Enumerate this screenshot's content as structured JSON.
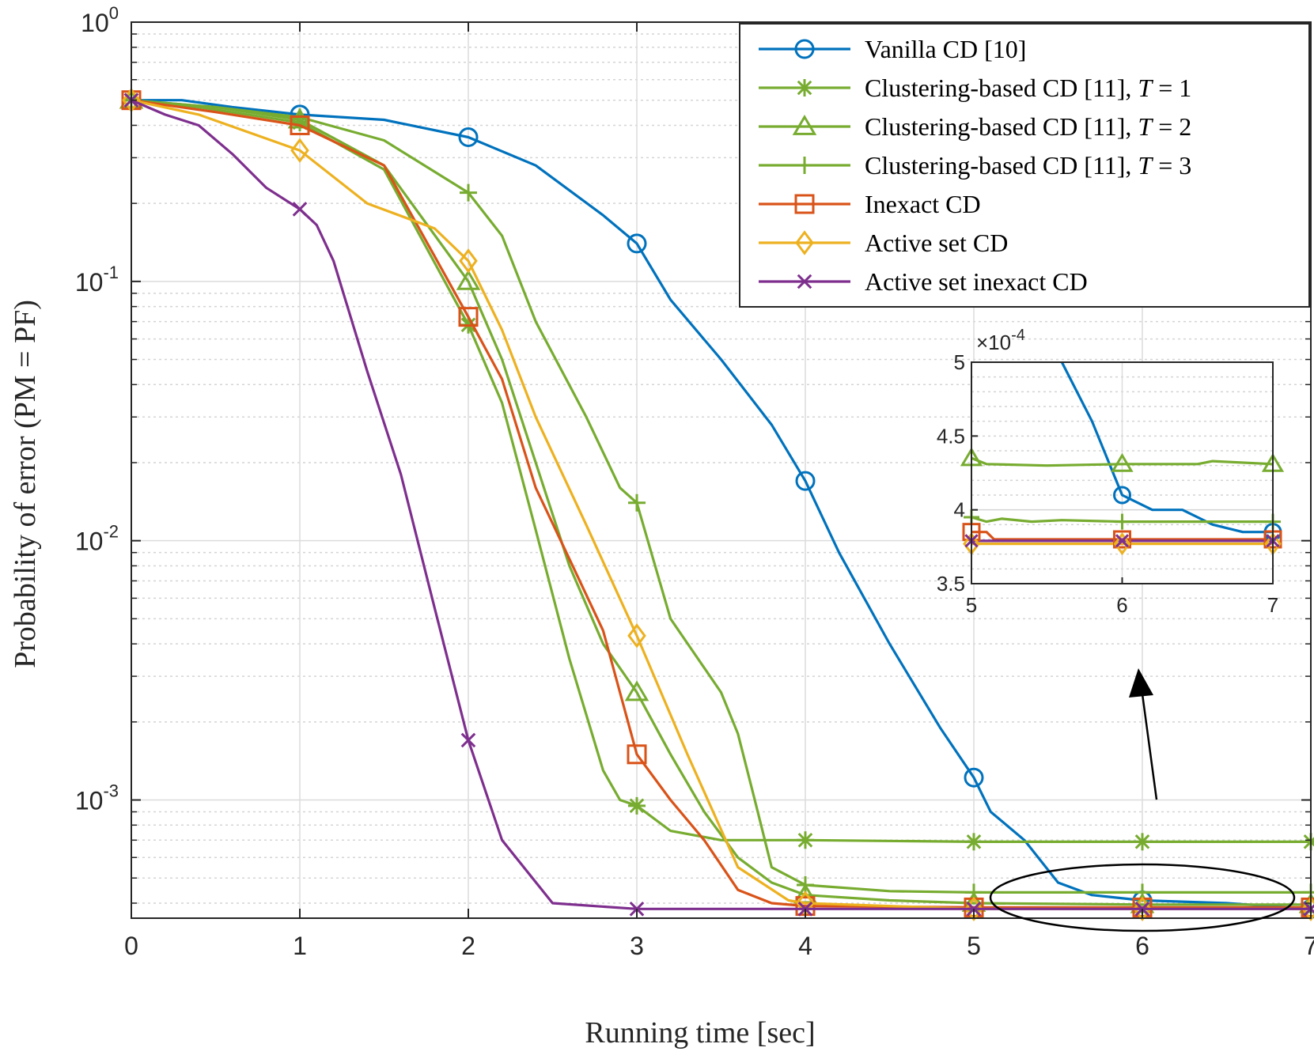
{
  "chart_data": {
    "type": "line",
    "title": "",
    "xlabel": "Running time [sec]",
    "ylabel": "Probability of error (PM = PF)",
    "yscale": "log",
    "xlim": [
      0,
      7
    ],
    "ylim": [
      0.00035,
      1
    ],
    "xticks": [
      "0",
      "1",
      "2",
      "3",
      "4",
      "5",
      "6",
      "7"
    ],
    "yticks": [
      {
        "base": "10",
        "exp": "0"
      },
      {
        "base": "10",
        "exp": "-1"
      },
      {
        "base": "10",
        "exp": "-2"
      },
      {
        "base": "10",
        "exp": "-3"
      }
    ],
    "grid": true,
    "legend_position": "top-right",
    "series": [
      {
        "name": "Vanilla CD [10]",
        "label_parts": [
          "Vanilla CD [10]"
        ],
        "color": "#0072BD",
        "marker": "circle",
        "x": [
          0,
          0.3,
          0.6,
          1.0,
          1.5,
          2.0,
          2.4,
          2.8,
          3.0,
          3.2,
          3.5,
          3.8,
          4.0,
          4.2,
          4.5,
          4.8,
          5.0,
          5.1,
          5.3,
          5.5,
          5.7,
          6.0,
          6.5,
          7.0
        ],
        "y": [
          0.5,
          0.5,
          0.47,
          0.44,
          0.42,
          0.36,
          0.28,
          0.18,
          0.14,
          0.085,
          0.05,
          0.028,
          0.017,
          0.009,
          0.004,
          0.0019,
          0.00122,
          0.0009,
          0.0007,
          0.00048,
          0.00043,
          0.00041,
          0.0004,
          0.00038
        ],
        "marker_x": [
          1,
          2,
          3,
          4,
          5,
          6,
          7
        ],
        "marker_y": [
          0.44,
          0.36,
          0.14,
          0.017,
          0.00122,
          0.00041,
          0.00038
        ]
      },
      {
        "name": "Clustering-based CD [11], T = 1",
        "label_parts": [
          "Clustering-based CD [11], ",
          "T",
          " = 1"
        ],
        "color": "#77AC30",
        "marker": "asterisk",
        "x": [
          0,
          0.4,
          1.0,
          1.5,
          2.0,
          2.2,
          2.4,
          2.6,
          2.8,
          2.9,
          3.0,
          3.2,
          3.5,
          3.8,
          4.0,
          5.0,
          6.0,
          7.0
        ],
        "y": [
          0.5,
          0.47,
          0.41,
          0.27,
          0.068,
          0.034,
          0.011,
          0.0035,
          0.0013,
          0.001,
          0.00095,
          0.00076,
          0.0007,
          0.0007,
          0.0007,
          0.00069,
          0.00069,
          0.00069
        ],
        "marker_x": [
          0,
          1,
          2,
          3,
          4,
          5,
          6,
          7
        ],
        "marker_y": [
          0.5,
          0.41,
          0.068,
          0.00095,
          0.0007,
          0.00069,
          0.00069,
          0.00069
        ]
      },
      {
        "name": "Clustering-based CD [11], T = 2",
        "label_parts": [
          "Clustering-based CD [11], ",
          "T",
          " = 2"
        ],
        "color": "#77AC30",
        "marker": "triangle",
        "x": [
          0,
          0.5,
          1.0,
          1.5,
          2.0,
          2.2,
          2.4,
          2.6,
          2.8,
          3.0,
          3.2,
          3.4,
          3.6,
          3.8,
          4.0,
          4.5,
          5.0,
          6.0,
          7.0
        ],
        "y": [
          0.5,
          0.47,
          0.42,
          0.28,
          0.1,
          0.05,
          0.02,
          0.008,
          0.004,
          0.0026,
          0.0015,
          0.0009,
          0.0006,
          0.00048,
          0.00043,
          0.00041,
          0.0004,
          0.000395,
          0.000395
        ],
        "marker_x": [
          0,
          1,
          2,
          3,
          4,
          5,
          6,
          7
        ],
        "marker_y": [
          0.5,
          0.42,
          0.1,
          0.0026,
          0.00043,
          0.0004,
          0.000395,
          0.000395
        ]
      },
      {
        "name": "Clustering-based CD [11], T = 3",
        "label_parts": [
          "Clustering-based CD [11], ",
          "T",
          " = 3"
        ],
        "color": "#77AC30",
        "marker": "plus",
        "x": [
          0,
          0.5,
          1.0,
          1.5,
          2.0,
          2.2,
          2.4,
          2.7,
          2.9,
          3.0,
          3.2,
          3.5,
          3.6,
          3.7,
          3.8,
          4.0,
          4.5,
          5.0,
          6.0,
          7.0
        ],
        "y": [
          0.5,
          0.47,
          0.43,
          0.35,
          0.22,
          0.15,
          0.07,
          0.03,
          0.016,
          0.014,
          0.005,
          0.0026,
          0.0018,
          0.001,
          0.00055,
          0.00047,
          0.000445,
          0.00044,
          0.00044,
          0.00044
        ],
        "marker_x": [
          0,
          1,
          2,
          3,
          4,
          5,
          6,
          7
        ],
        "marker_y": [
          0.5,
          0.43,
          0.22,
          0.014,
          0.00047,
          0.00044,
          0.00044,
          0.00044
        ]
      },
      {
        "name": "Inexact CD",
        "label_parts": [
          "Inexact CD"
        ],
        "color": "#D95319",
        "marker": "square",
        "x": [
          0,
          0.5,
          1.0,
          1.5,
          2.0,
          2.2,
          2.4,
          2.6,
          2.8,
          3.0,
          3.2,
          3.4,
          3.6,
          3.8,
          4.0,
          5.0,
          6.0,
          7.0
        ],
        "y": [
          0.5,
          0.45,
          0.4,
          0.28,
          0.073,
          0.042,
          0.016,
          0.0085,
          0.0045,
          0.0015,
          0.001,
          0.0007,
          0.00045,
          0.0004,
          0.00039,
          0.000385,
          0.000385,
          0.000385
        ],
        "marker_x": [
          0,
          1,
          2,
          3,
          4,
          5,
          6,
          7
        ],
        "marker_y": [
          0.5,
          0.4,
          0.073,
          0.0015,
          0.00039,
          0.000385,
          0.000385,
          0.000385
        ]
      },
      {
        "name": "Active set CD",
        "label_parts": [
          "Active set CD"
        ],
        "color": "#EDB120",
        "marker": "diamond",
        "x": [
          0,
          0.4,
          1.0,
          1.4,
          1.8,
          2.0,
          2.2,
          2.4,
          2.7,
          3.0,
          3.3,
          3.6,
          3.9,
          4.0,
          5.0,
          6.0,
          7.0
        ],
        "y": [
          0.5,
          0.44,
          0.32,
          0.2,
          0.16,
          0.12,
          0.065,
          0.03,
          0.0115,
          0.0043,
          0.0015,
          0.00055,
          0.00041,
          0.0004,
          0.00038,
          0.00038,
          0.00038
        ],
        "marker_x": [
          0,
          1,
          2,
          3,
          4,
          5,
          6,
          7
        ],
        "marker_y": [
          0.5,
          0.32,
          0.12,
          0.0043,
          0.0004,
          0.00038,
          0.00038,
          0.00038
        ]
      },
      {
        "name": "Active set inexact CD",
        "label_parts": [
          "Active set inexact CD"
        ],
        "color": "#7E2F8E",
        "marker": "x",
        "x": [
          0,
          0.2,
          0.4,
          0.6,
          0.8,
          1.0,
          1.1,
          1.2,
          1.4,
          1.6,
          1.8,
          2.0,
          2.2,
          2.5,
          3.0,
          4.0,
          5.0,
          6.0,
          7.0
        ],
        "y": [
          0.5,
          0.44,
          0.4,
          0.31,
          0.23,
          0.19,
          0.165,
          0.12,
          0.045,
          0.018,
          0.0055,
          0.0017,
          0.0007,
          0.0004,
          0.00038,
          0.00038,
          0.00038,
          0.00038,
          0.00038
        ],
        "marker_x": [
          0,
          1,
          2,
          3,
          4,
          5,
          6,
          7
        ],
        "marker_y": [
          0.5,
          0.19,
          0.0017,
          0.00038,
          0.00038,
          0.00038,
          0.00038,
          0.00038
        ]
      }
    ],
    "inset": {
      "xlim": [
        5,
        7
      ],
      "ylim": [
        3.5,
        5
      ],
      "y_multiplier": {
        "prefix": "×10",
        "exp": "-4"
      },
      "xticks": [
        "5",
        "6",
        "7"
      ],
      "yticks": [
        "3.5",
        "4",
        "4.5",
        "5"
      ],
      "series": [
        {
          "color": "#0072BD",
          "marker": "circle",
          "x": [
            5.6,
            5.8,
            6.0,
            6.2,
            6.4,
            6.6,
            6.8,
            7.0
          ],
          "y": [
            5.0,
            4.6,
            4.1,
            4.0,
            4.0,
            3.9,
            3.85,
            3.85
          ],
          "marker_x": [
            6,
            7
          ],
          "marker_y": [
            4.1,
            3.85
          ]
        },
        {
          "color": "#77AC30",
          "marker": "triangle",
          "x": [
            5.0,
            5.1,
            5.5,
            6.0,
            6.5,
            6.6,
            7.0
          ],
          "y": [
            4.35,
            4.31,
            4.3,
            4.31,
            4.31,
            4.33,
            4.31
          ],
          "marker_x": [
            5,
            6,
            7
          ],
          "marker_y": [
            4.35,
            4.31,
            4.31
          ]
        },
        {
          "color": "#77AC30",
          "marker": "plus",
          "x": [
            5.0,
            5.1,
            5.2,
            5.4,
            5.6,
            6.0,
            6.5,
            7.0
          ],
          "y": [
            3.95,
            3.92,
            3.94,
            3.92,
            3.93,
            3.92,
            3.92,
            3.92
          ],
          "marker_x": [
            5,
            6,
            7
          ],
          "marker_y": [
            3.95,
            3.92,
            3.92
          ]
        },
        {
          "color": "#D95319",
          "marker": "square",
          "x": [
            5.0,
            5.1,
            5.15,
            5.5,
            6.0,
            7.0
          ],
          "y": [
            3.85,
            3.85,
            3.8,
            3.8,
            3.8,
            3.8
          ],
          "marker_x": [
            5,
            6,
            7
          ],
          "marker_y": [
            3.85,
            3.8,
            3.8
          ]
        },
        {
          "color": "#EDB120",
          "marker": "diamond",
          "x": [
            5.0,
            7.0
          ],
          "y": [
            3.77,
            3.77
          ],
          "marker_x": [
            5,
            6,
            7
          ],
          "marker_y": [
            3.77,
            3.77,
            3.77
          ]
        },
        {
          "color": "#7E2F8E",
          "marker": "x",
          "x": [
            5.0,
            7.0
          ],
          "y": [
            3.79,
            3.79
          ],
          "marker_x": [
            5,
            6,
            7
          ],
          "marker_y": [
            3.79,
            3.79,
            3.79
          ]
        }
      ]
    },
    "zoom_region": {
      "x_center": 6.0,
      "y_center": 0.00042
    }
  }
}
